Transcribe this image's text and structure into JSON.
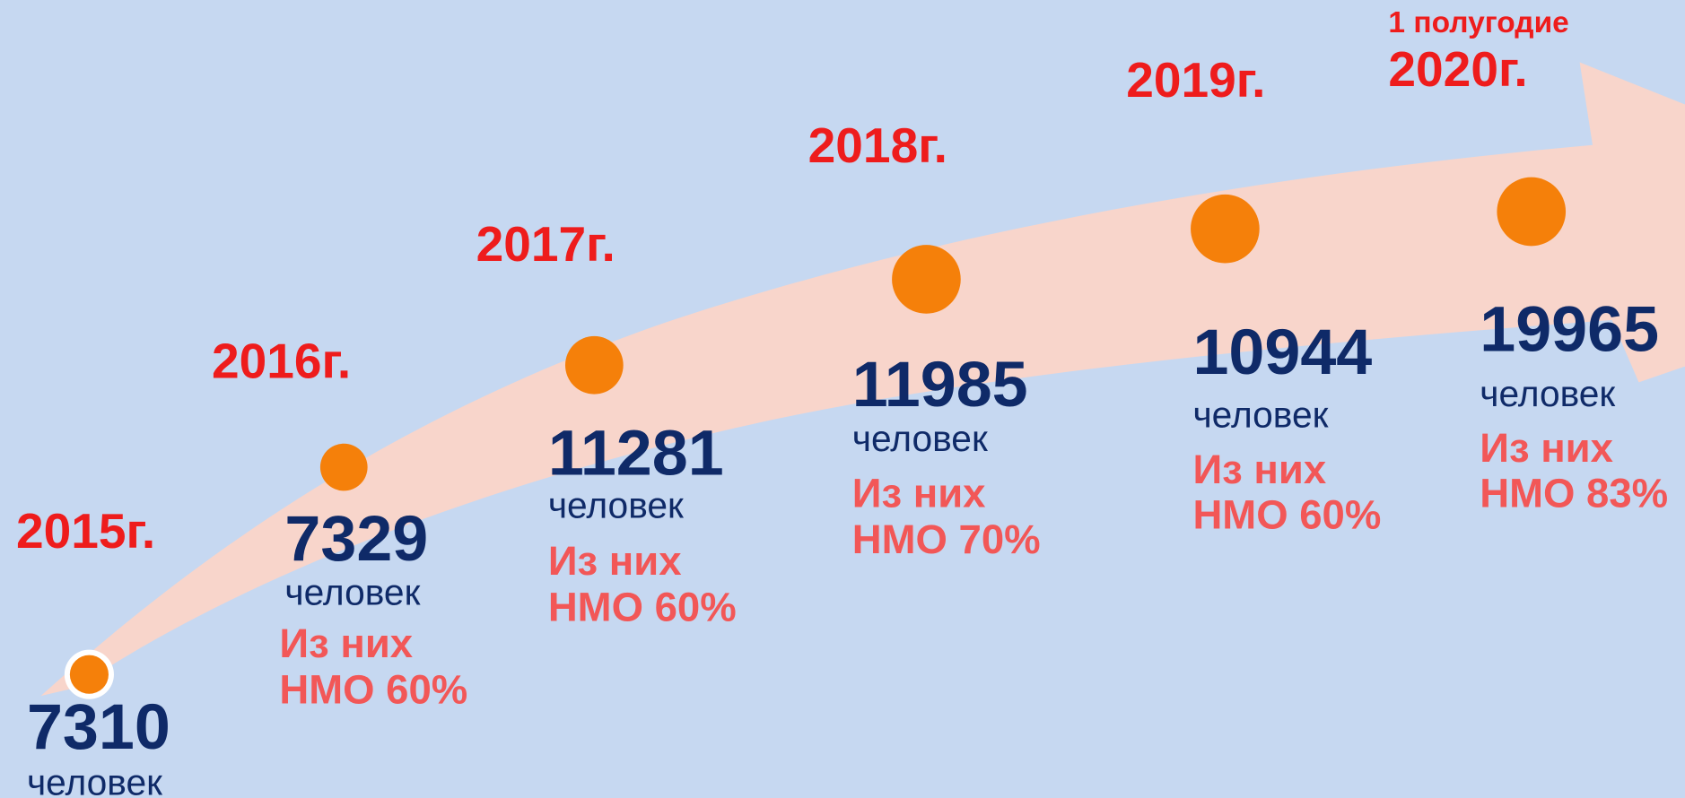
{
  "steps": [
    {
      "year": "2015г.",
      "count": 7310,
      "unit": "человек"
    },
    {
      "year": "2016г.",
      "count": 7329,
      "unit": "человек",
      "note": [
        "Из них",
        "НМО 60%"
      ]
    },
    {
      "year": "2017г.",
      "count": 11281,
      "unit": "человек",
      "note": [
        "Из них",
        "НМО 60%"
      ]
    },
    {
      "year": "2018г.",
      "count": 11985,
      "unit": "человек",
      "note": [
        "Из них",
        "НМО 70%"
      ]
    },
    {
      "year": "2019г.",
      "count": 10944,
      "unit": "человек",
      "note": [
        "Из них",
        "НМО 60%"
      ]
    },
    {
      "period": "1 полугодие",
      "year": "2020г.",
      "count": 19965,
      "unit": "человек",
      "note": [
        "Из них",
        "НМО 83%"
      ]
    }
  ]
}
